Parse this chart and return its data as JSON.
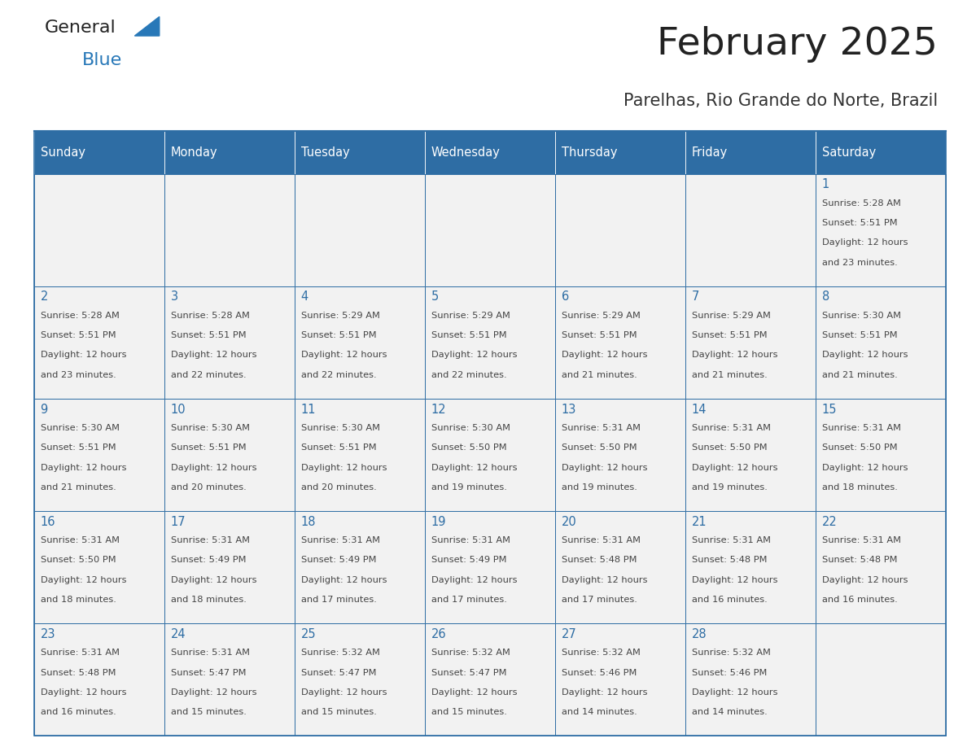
{
  "title": "February 2025",
  "subtitle": "Parelhas, Rio Grande do Norte, Brazil",
  "header_bg": "#2e6da4",
  "header_text": "#ffffff",
  "cell_bg_odd": "#f0f0f0",
  "cell_bg_even": "#ffffff",
  "border_color": "#2e6da4",
  "day_headers": [
    "Sunday",
    "Monday",
    "Tuesday",
    "Wednesday",
    "Thursday",
    "Friday",
    "Saturday"
  ],
  "title_color": "#222222",
  "subtitle_color": "#333333",
  "day_number_color": "#2e6da4",
  "content_color": "#444444",
  "logo_general_color": "#222222",
  "logo_blue_color": "#2878b8",
  "weeks": [
    [
      null,
      null,
      null,
      null,
      null,
      null,
      {
        "day": 1,
        "sunrise": "5:28 AM",
        "sunset": "5:51 PM",
        "daylight_hours": 12,
        "daylight_minutes": 23
      }
    ],
    [
      {
        "day": 2,
        "sunrise": "5:28 AM",
        "sunset": "5:51 PM",
        "daylight_hours": 12,
        "daylight_minutes": 23
      },
      {
        "day": 3,
        "sunrise": "5:28 AM",
        "sunset": "5:51 PM",
        "daylight_hours": 12,
        "daylight_minutes": 22
      },
      {
        "day": 4,
        "sunrise": "5:29 AM",
        "sunset": "5:51 PM",
        "daylight_hours": 12,
        "daylight_minutes": 22
      },
      {
        "day": 5,
        "sunrise": "5:29 AM",
        "sunset": "5:51 PM",
        "daylight_hours": 12,
        "daylight_minutes": 22
      },
      {
        "day": 6,
        "sunrise": "5:29 AM",
        "sunset": "5:51 PM",
        "daylight_hours": 12,
        "daylight_minutes": 21
      },
      {
        "day": 7,
        "sunrise": "5:29 AM",
        "sunset": "5:51 PM",
        "daylight_hours": 12,
        "daylight_minutes": 21
      },
      {
        "day": 8,
        "sunrise": "5:30 AM",
        "sunset": "5:51 PM",
        "daylight_hours": 12,
        "daylight_minutes": 21
      }
    ],
    [
      {
        "day": 9,
        "sunrise": "5:30 AM",
        "sunset": "5:51 PM",
        "daylight_hours": 12,
        "daylight_minutes": 21
      },
      {
        "day": 10,
        "sunrise": "5:30 AM",
        "sunset": "5:51 PM",
        "daylight_hours": 12,
        "daylight_minutes": 20
      },
      {
        "day": 11,
        "sunrise": "5:30 AM",
        "sunset": "5:51 PM",
        "daylight_hours": 12,
        "daylight_minutes": 20
      },
      {
        "day": 12,
        "sunrise": "5:30 AM",
        "sunset": "5:50 PM",
        "daylight_hours": 12,
        "daylight_minutes": 19
      },
      {
        "day": 13,
        "sunrise": "5:31 AM",
        "sunset": "5:50 PM",
        "daylight_hours": 12,
        "daylight_minutes": 19
      },
      {
        "day": 14,
        "sunrise": "5:31 AM",
        "sunset": "5:50 PM",
        "daylight_hours": 12,
        "daylight_minutes": 19
      },
      {
        "day": 15,
        "sunrise": "5:31 AM",
        "sunset": "5:50 PM",
        "daylight_hours": 12,
        "daylight_minutes": 18
      }
    ],
    [
      {
        "day": 16,
        "sunrise": "5:31 AM",
        "sunset": "5:50 PM",
        "daylight_hours": 12,
        "daylight_minutes": 18
      },
      {
        "day": 17,
        "sunrise": "5:31 AM",
        "sunset": "5:49 PM",
        "daylight_hours": 12,
        "daylight_minutes": 18
      },
      {
        "day": 18,
        "sunrise": "5:31 AM",
        "sunset": "5:49 PM",
        "daylight_hours": 12,
        "daylight_minutes": 17
      },
      {
        "day": 19,
        "sunrise": "5:31 AM",
        "sunset": "5:49 PM",
        "daylight_hours": 12,
        "daylight_minutes": 17
      },
      {
        "day": 20,
        "sunrise": "5:31 AM",
        "sunset": "5:48 PM",
        "daylight_hours": 12,
        "daylight_minutes": 17
      },
      {
        "day": 21,
        "sunrise": "5:31 AM",
        "sunset": "5:48 PM",
        "daylight_hours": 12,
        "daylight_minutes": 16
      },
      {
        "day": 22,
        "sunrise": "5:31 AM",
        "sunset": "5:48 PM",
        "daylight_hours": 12,
        "daylight_minutes": 16
      }
    ],
    [
      {
        "day": 23,
        "sunrise": "5:31 AM",
        "sunset": "5:48 PM",
        "daylight_hours": 12,
        "daylight_minutes": 16
      },
      {
        "day": 24,
        "sunrise": "5:31 AM",
        "sunset": "5:47 PM",
        "daylight_hours": 12,
        "daylight_minutes": 15
      },
      {
        "day": 25,
        "sunrise": "5:32 AM",
        "sunset": "5:47 PM",
        "daylight_hours": 12,
        "daylight_minutes": 15
      },
      {
        "day": 26,
        "sunrise": "5:32 AM",
        "sunset": "5:47 PM",
        "daylight_hours": 12,
        "daylight_minutes": 15
      },
      {
        "day": 27,
        "sunrise": "5:32 AM",
        "sunset": "5:46 PM",
        "daylight_hours": 12,
        "daylight_minutes": 14
      },
      {
        "day": 28,
        "sunrise": "5:32 AM",
        "sunset": "5:46 PM",
        "daylight_hours": 12,
        "daylight_minutes": 14
      },
      null
    ]
  ]
}
